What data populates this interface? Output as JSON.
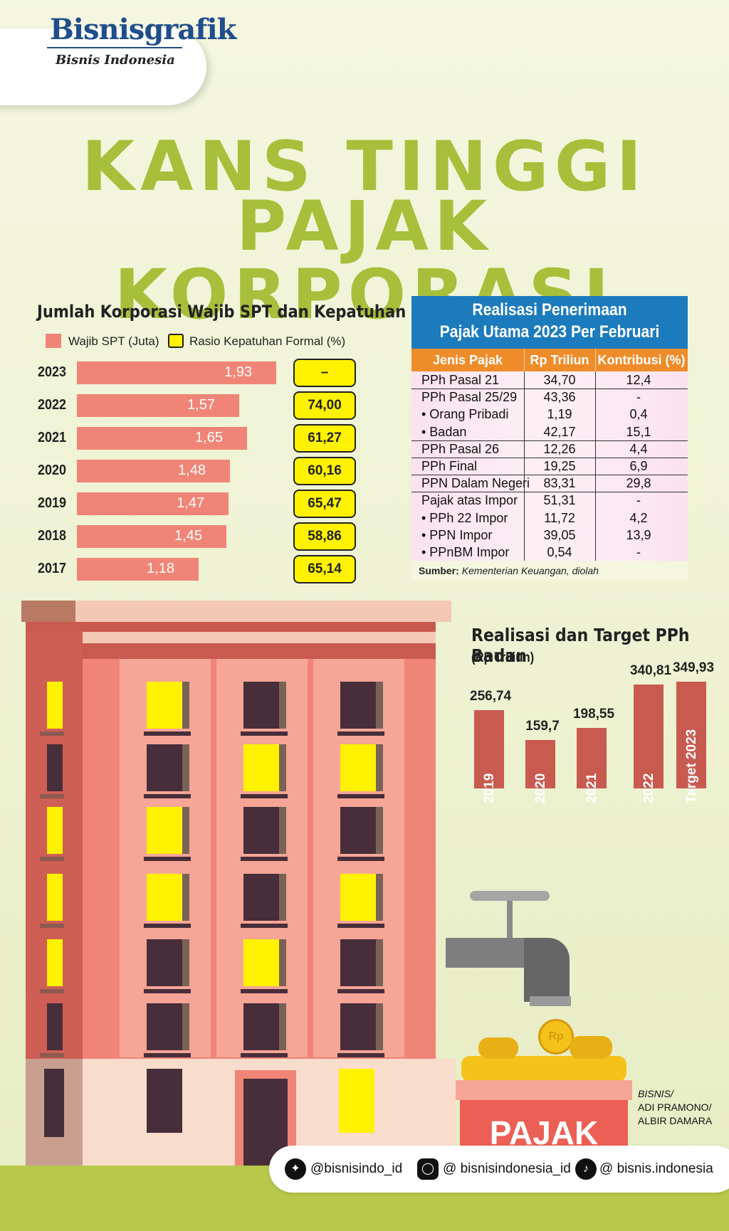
{
  "brand": {
    "name": "Bisnisgrafik",
    "sub": "Bisnis Indonesia"
  },
  "title": {
    "line1": "KANS TINGGI",
    "line2": "PAJAK KORPORASI"
  },
  "colors": {
    "accent_title": "#a7bf3a",
    "bar_salmon": "#f08577",
    "ratio_yellow": "#fff200",
    "table_blue": "#1c7bbd",
    "table_orange": "#ef8c2a",
    "pph_bar": "#c95a50"
  },
  "chart_data": [
    {
      "type": "bar",
      "title": "Jumlah Korporasi Wajib SPT dan Kepatuhan",
      "legend": [
        "Wajib SPT (Juta)",
        "Rasio Kepatuhan Formal (%)"
      ],
      "categories": [
        "2023",
        "2022",
        "2021",
        "2020",
        "2019",
        "2018",
        "2017"
      ],
      "series": [
        {
          "name": "Wajib SPT (Juta)",
          "values": [
            1.93,
            1.57,
            1.65,
            1.48,
            1.47,
            1.45,
            1.18
          ],
          "labels": [
            "1,93",
            "1,57",
            "1,65",
            "1,48",
            "1,47",
            "1,45",
            "1,18"
          ]
        },
        {
          "name": "Rasio Kepatuhan Formal (%)",
          "labels": [
            "–",
            "74,00",
            "61,27",
            "60,16",
            "65,47",
            "58,86",
            "65,14"
          ]
        }
      ],
      "xlim": [
        0,
        1.93
      ]
    },
    {
      "type": "table",
      "title": [
        "Realisasi Penerimaan",
        "Pajak Utama 2023 Per Februari"
      ],
      "columns": [
        "Jenis Pajak",
        "Rp Triliun",
        "Kontribusi (%)"
      ],
      "rows": [
        [
          "PPh Pasal 21",
          "34,70",
          "12,4"
        ],
        [
          "PPh Pasal 25/29",
          "43,36",
          "-"
        ],
        [
          "• Orang Pribadi",
          "1,19",
          "0,4"
        ],
        [
          "• Badan",
          "42,17",
          "15,1"
        ],
        [
          "PPh Pasal 26",
          "12,26",
          "4,4"
        ],
        [
          "PPh Final",
          "19,25",
          "6,9"
        ],
        [
          "PPN Dalam Negeri",
          "83,31",
          "29,8"
        ],
        [
          "Pajak atas Impor",
          "51,31",
          "-"
        ],
        [
          "• PPh 22 Impor",
          "11,72",
          "4,2"
        ],
        [
          "• PPN Impor",
          "39,05",
          "13,9"
        ],
        [
          "• PPnBM Impor",
          "0,54",
          "-"
        ]
      ],
      "source_label": "Sumber:",
      "source_text": "Kementerian Keuangan, diolah"
    },
    {
      "type": "bar",
      "title": "Realisasi dan Target PPh Badan",
      "ylabel": "(Rp Triliun)",
      "categories": [
        "2019",
        "2020",
        "2021",
        "2022",
        "Target 2023"
      ],
      "values": [
        256.74,
        159.7,
        198.55,
        340.81,
        349.93
      ],
      "labels": [
        "256,74",
        "159,7",
        "198,55",
        "340,81",
        "349,93"
      ],
      "ylim": [
        0,
        350
      ]
    }
  ],
  "illustration": {
    "box_label": "PAJAK",
    "coin_label": "Rp"
  },
  "credit": {
    "l1": "BISNIS/",
    "l2": "ADI PRAMONO/",
    "l3": "ALBIR DAMARA"
  },
  "social": {
    "twitter": "@bisnisindo_id",
    "instagram": "@ bisnisindonesia_id",
    "tiktok": "@ bisnis.indonesia"
  }
}
